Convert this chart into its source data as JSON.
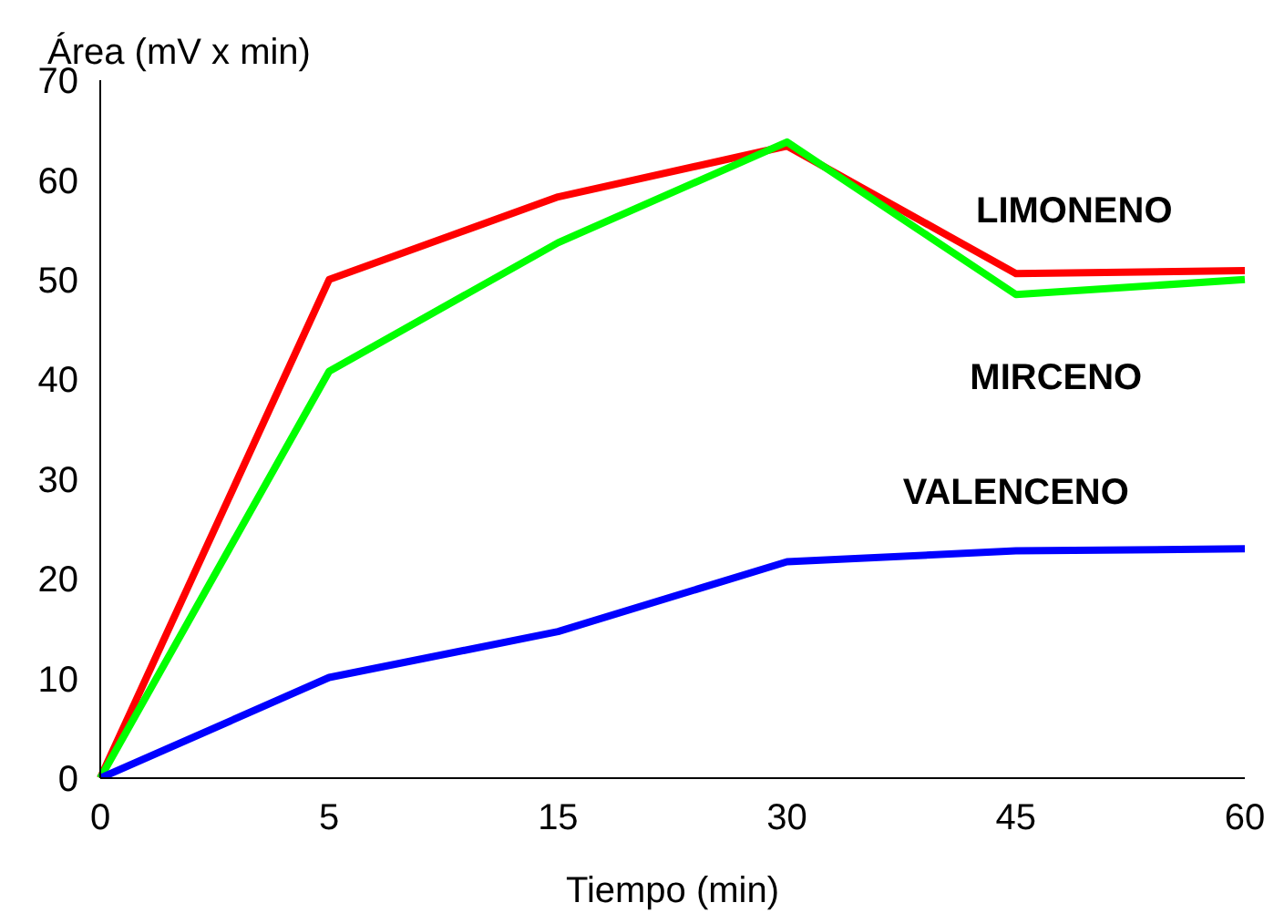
{
  "chart_data": {
    "type": "line",
    "xlabel": "Tiempo (min)",
    "ylabel": "Área (mV x min)",
    "categories": [
      "0",
      "5",
      "15",
      "30",
      "45",
      "60"
    ],
    "ylim": [
      0,
      70
    ],
    "yticks": [
      0,
      10,
      20,
      30,
      40,
      50,
      60,
      70
    ],
    "grid": false,
    "legend": false,
    "marker": "none",
    "line_style": "solid",
    "series": [
      {
        "name": "LIMONENO",
        "color": "#ff0000",
        "values": [
          0,
          50,
          58.3,
          63.4,
          50.6,
          50.9
        ]
      },
      {
        "name": "MIRCENO",
        "color": "#00ff00",
        "values": [
          0,
          40.8,
          53.7,
          63.8,
          48.5,
          50.0
        ]
      },
      {
        "name": "VALENCENO",
        "color": "#0000ff",
        "values": [
          0,
          10.1,
          14.7,
          21.7,
          22.8,
          23.0
        ]
      }
    ]
  }
}
